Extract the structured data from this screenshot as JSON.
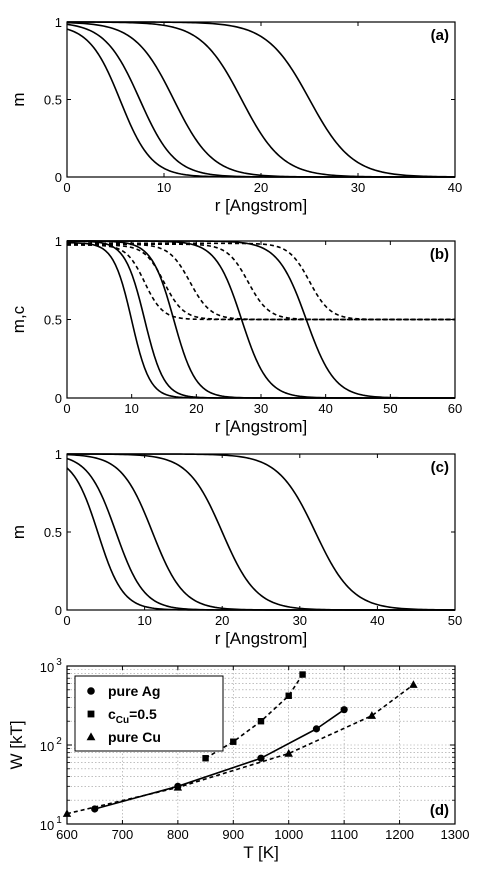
{
  "chart_data": [
    {
      "type": "line",
      "panel_label": "(a)",
      "xlabel": "r [Angstrom]",
      "ylabel": "m",
      "xlim": [
        0,
        40
      ],
      "ylim": [
        0,
        1
      ],
      "xticks": [
        "0",
        "10",
        "20",
        "30",
        "40"
      ],
      "yticks": [
        "0",
        "0.5",
        "1"
      ],
      "grid": false,
      "series": [
        {
          "kind": "sigmoid",
          "center": 5.5,
          "width": 1.6,
          "low": 0,
          "high": 0.985
        },
        {
          "kind": "sigmoid",
          "center": 7.5,
          "width": 1.8,
          "low": 0,
          "high": 1.0
        },
        {
          "kind": "sigmoid",
          "center": 11.0,
          "width": 2.0,
          "low": 0,
          "high": 1.0
        },
        {
          "kind": "sigmoid",
          "center": 18.0,
          "width": 2.1,
          "low": 0,
          "high": 1.0
        },
        {
          "kind": "sigmoid",
          "center": 25.0,
          "width": 2.2,
          "low": 0,
          "high": 1.0
        }
      ]
    },
    {
      "type": "line",
      "panel_label": "(b)",
      "xlabel": "r [Angstrom]",
      "ylabel": "m,c",
      "xlim": [
        0,
        60
      ],
      "ylim": [
        0,
        1
      ],
      "xticks": [
        "0",
        "10",
        "20",
        "30",
        "40",
        "50",
        "60"
      ],
      "yticks": [
        "0",
        "0.5",
        "1"
      ],
      "grid": false,
      "series": [
        {
          "kind": "sigmoid",
          "style": "solid",
          "center": 10.0,
          "width": 1.4,
          "low": 0,
          "high": 0.99
        },
        {
          "kind": "sigmoid",
          "style": "solid",
          "center": 12.0,
          "width": 1.5,
          "low": 0,
          "high": 1.0
        },
        {
          "kind": "sigmoid",
          "style": "solid",
          "center": 16.5,
          "width": 1.7,
          "low": 0,
          "high": 1.0
        },
        {
          "kind": "sigmoid",
          "style": "solid",
          "center": 27.0,
          "width": 2.0,
          "low": 0,
          "high": 1.0
        },
        {
          "kind": "sigmoid",
          "style": "solid",
          "center": 37.0,
          "width": 2.2,
          "low": 0,
          "high": 1.0
        },
        {
          "kind": "sigmoid",
          "style": "dashed",
          "center": 12.0,
          "width": 1.4,
          "low": 0.5,
          "high": 0.975
        },
        {
          "kind": "sigmoid",
          "style": "dashed",
          "center": 15.0,
          "width": 1.5,
          "low": 0.5,
          "high": 0.975
        },
        {
          "kind": "sigmoid",
          "style": "dashed",
          "center": 19.0,
          "width": 1.6,
          "low": 0.5,
          "high": 0.98
        },
        {
          "kind": "sigmoid",
          "style": "dashed",
          "center": 28.0,
          "width": 1.6,
          "low": 0.5,
          "high": 0.98
        },
        {
          "kind": "sigmoid",
          "style": "dashed",
          "center": 37.5,
          "width": 1.6,
          "low": 0.5,
          "high": 0.985
        }
      ]
    },
    {
      "type": "line",
      "panel_label": "(c)",
      "xlabel": "r [Angstrom]",
      "ylabel": "m",
      "xlim": [
        0,
        50
      ],
      "ylim": [
        0,
        1
      ],
      "xticks": [
        "0",
        "10",
        "20",
        "30",
        "40",
        "50"
      ],
      "yticks": [
        "0",
        "0.5",
        "1"
      ],
      "grid": false,
      "series": [
        {
          "kind": "sigmoid",
          "center": 4.0,
          "width": 1.6,
          "low": 0,
          "high": 0.985
        },
        {
          "kind": "sigmoid",
          "center": 6.3,
          "width": 1.8,
          "low": 0,
          "high": 1.0
        },
        {
          "kind": "sigmoid",
          "center": 11.0,
          "width": 2.0,
          "low": 0,
          "high": 1.0
        },
        {
          "kind": "sigmoid",
          "center": 20.0,
          "width": 2.2,
          "low": 0,
          "high": 1.0
        },
        {
          "kind": "sigmoid",
          "center": 32.0,
          "width": 2.4,
          "low": 0,
          "high": 1.0
        }
      ]
    },
    {
      "type": "line",
      "panel_label": "(d)",
      "xlabel": "T [K]",
      "ylabel": "W [kT]",
      "xlim": [
        600,
        1300
      ],
      "ylim": [
        10,
        1000
      ],
      "yscale": "log",
      "xticks": [
        "600",
        "700",
        "800",
        "900",
        "1000",
        "1100",
        "1200",
        "1300"
      ],
      "yticks": [
        {
          "base": "10",
          "exp": "1"
        },
        {
          "base": "10",
          "exp": "2"
        },
        {
          "base": "10",
          "exp": "3"
        }
      ],
      "grid": true,
      "legend_position": "top-left",
      "series": [
        {
          "name": "pure Ag",
          "marker": "circle",
          "style": "solid",
          "points": [
            [
              650,
              15.5
            ],
            [
              800,
              30
            ],
            [
              950,
              68
            ],
            [
              1050,
              160
            ],
            [
              1100,
              280
            ]
          ]
        },
        {
          "name": "c",
          "name_subscript": "Cu",
          "name_suffix": "=0.5",
          "marker": "square",
          "style": "dashed",
          "points": [
            [
              850,
              68
            ],
            [
              900,
              110
            ],
            [
              950,
              200
            ],
            [
              1000,
              420
            ],
            [
              1025,
              780
            ]
          ]
        },
        {
          "name": "pure Cu",
          "marker": "triangle",
          "style": "dashed",
          "points": [
            [
              600,
              13.5
            ],
            [
              800,
              29
            ],
            [
              1000,
              78
            ],
            [
              1150,
              235
            ],
            [
              1225,
              580
            ]
          ]
        }
      ]
    }
  ]
}
